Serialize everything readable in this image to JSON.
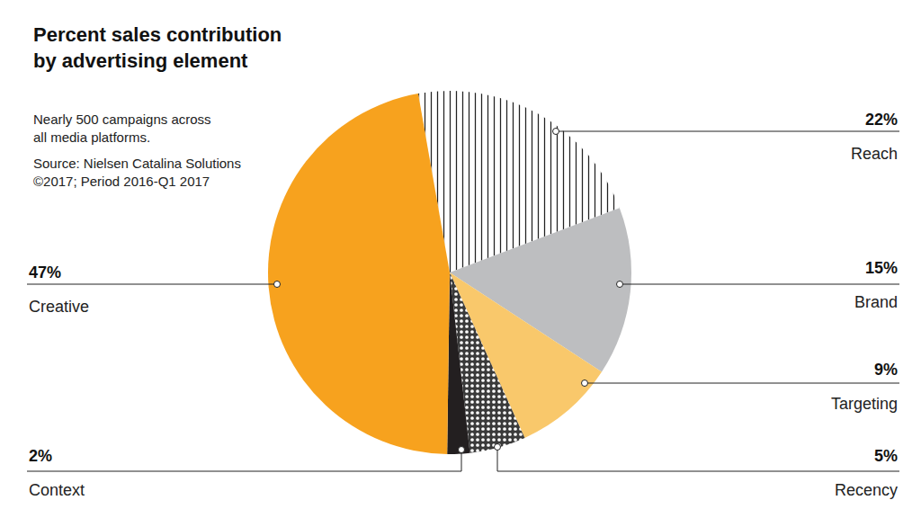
{
  "chart_data": {
    "type": "pie",
    "title": "Percent sales contribution\nby advertising element",
    "annotations": [
      "Nearly 500 campaigns across\nall media platforms.",
      "Source: Nielsen Catalina Solutions\n©2017; Period 2016-Q1 2017"
    ],
    "categories": [
      "Reach",
      "Brand",
      "Targeting",
      "Recency",
      "Context",
      "Creative"
    ],
    "values": [
      22,
      15,
      9,
      5,
      2,
      47
    ],
    "value_labels": [
      "22%",
      "15%",
      "9%",
      "5%",
      "2%",
      "47%"
    ],
    "colors": [
      "#ffffff",
      "#bdbec0",
      "#f9c86b",
      "#3a3a3a",
      "#231f20",
      "#f7a21e"
    ],
    "data_labels": true
  }
}
